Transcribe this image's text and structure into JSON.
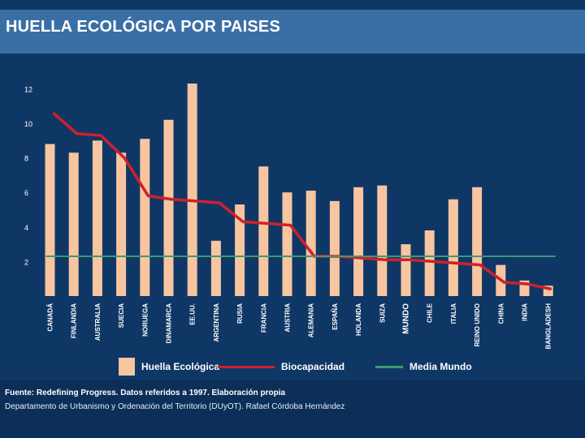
{
  "header": {
    "title": "HUELLA ECOLÓGICA POR PAISES"
  },
  "chart_data": {
    "type": "bar",
    "title": "HUELLA ECOLÓGICA POR PAISES",
    "categories": [
      "CANADÁ",
      "FINLANDIA",
      "AUSTRALIA",
      "SUECIA",
      "NORUEGA",
      "DINAMARCA",
      "EE.UU.",
      "ARGENTINA",
      "RUSIA",
      "FRANCIA",
      "AUSTRIA",
      "ALEMANIA",
      "ESPAÑA",
      "HOLANDA",
      "SUIZA",
      "MUNDO",
      "CHILE",
      "ITALIA",
      "REINO UNIDO",
      "CHINA",
      "INDIA",
      "BANGLADESH"
    ],
    "series": [
      {
        "name": "Huella Ecológica",
        "type": "bar",
        "color": "#f7c59f",
        "values": [
          8.8,
          8.3,
          9.0,
          8.3,
          9.1,
          10.2,
          12.3,
          3.2,
          5.3,
          7.5,
          6.0,
          6.1,
          5.5,
          6.3,
          6.4,
          3.0,
          3.8,
          5.6,
          6.3,
          1.8,
          0.9,
          0.6
        ]
      },
      {
        "name": "Biocapacidad",
        "type": "line",
        "color": "#d0202a",
        "values": [
          10.6,
          9.4,
          9.3,
          8.0,
          5.8,
          5.6,
          5.5,
          5.4,
          4.3,
          4.2,
          4.1,
          2.3,
          2.3,
          2.2,
          2.1,
          2.1,
          2.0,
          1.9,
          1.8,
          0.8,
          0.7,
          0.4
        ]
      },
      {
        "name": "Media Mundo",
        "type": "line",
        "color": "#3d9a72",
        "values": [
          2.3,
          2.3,
          2.3,
          2.3,
          2.3,
          2.3,
          2.3,
          2.3,
          2.3,
          2.3,
          2.3,
          2.3,
          2.3,
          2.3,
          2.3,
          2.3,
          2.3,
          2.3,
          2.3,
          2.3,
          2.3,
          2.3
        ]
      }
    ],
    "yticks": [
      "2",
      "4",
      "6",
      "8",
      "10",
      "12"
    ],
    "ylim": [
      0,
      12.5
    ],
    "xlabel": "",
    "ylabel": "",
    "grid": false,
    "legend": "bottom",
    "highlight_category": "MUNDO"
  },
  "legend": {
    "footprint_label": "Huella Ecológica",
    "biocapacity_label": "Biocapacidad",
    "world_label": "Media Mundo"
  },
  "footer": {
    "source": "Fuente: Redefining Progress. Datos referidos a 1997. Elaboración propia",
    "department": "Departamento de Urbanismo y Ordenación del Territorio (DUyOT). Rafael Córdoba Hernández"
  }
}
